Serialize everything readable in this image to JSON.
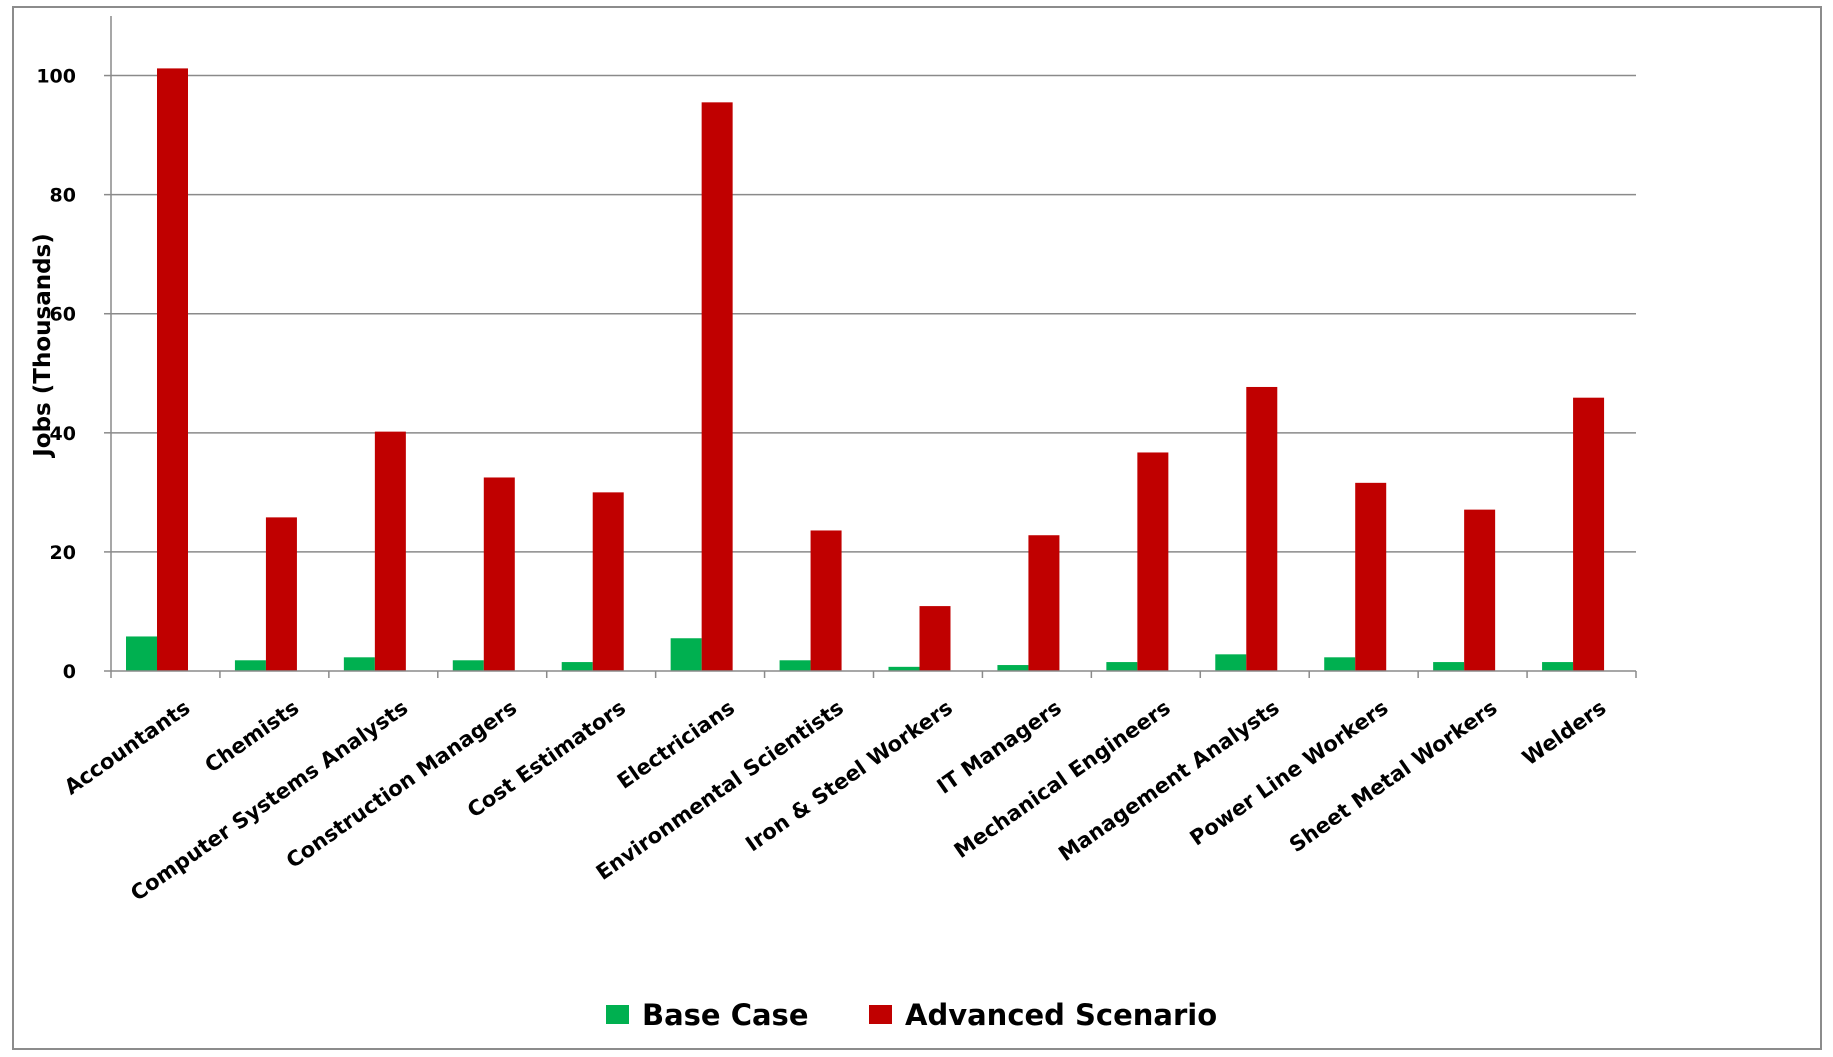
{
  "chart_data": {
    "type": "bar",
    "title": "",
    "xlabel": "",
    "ylabel": "Jobs (Thousands)",
    "ylim": [
      0,
      110
    ],
    "yticks": [
      0,
      20,
      40,
      60,
      80,
      100
    ],
    "grid": true,
    "legend_position": "bottom",
    "categories": [
      "Accountants",
      "Chemists",
      "Computer Systems Analysts",
      "Construction Managers",
      "Cost Estimators",
      "Electricians",
      "Environmental Scientists",
      "Iron & Steel Workers",
      "IT Managers",
      "Mechanical Engineers",
      "Management Analysts",
      "Power Line Workers",
      "Sheet Metal Workers",
      "Welders"
    ],
    "series": [
      {
        "name": "Base Case",
        "color": "#00b050",
        "values": [
          5.8,
          1.8,
          2.3,
          1.8,
          1.5,
          5.5,
          1.8,
          0.7,
          1.0,
          1.5,
          2.8,
          2.3,
          1.5,
          1.5
        ]
      },
      {
        "name": "Advanced Scenario",
        "color": "#c00000",
        "values": [
          101.2,
          25.8,
          40.2,
          32.5,
          30.0,
          95.5,
          23.6,
          10.9,
          22.8,
          36.7,
          47.7,
          31.6,
          27.1,
          45.9
        ]
      }
    ]
  }
}
